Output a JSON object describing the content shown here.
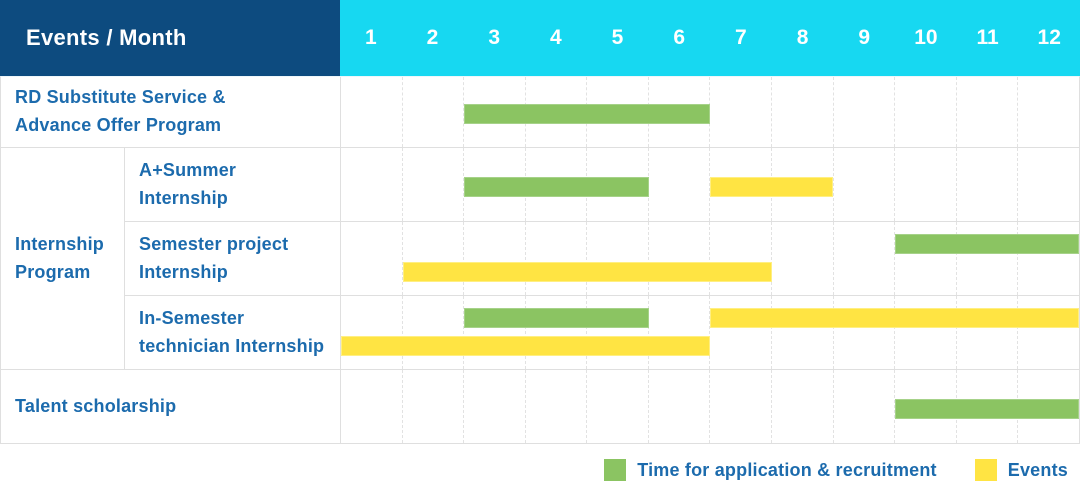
{
  "header": {
    "title": "Events / Month",
    "months": [
      "1",
      "2",
      "3",
      "4",
      "5",
      "6",
      "7",
      "8",
      "9",
      "10",
      "11",
      "12"
    ]
  },
  "colors": {
    "navy_header": "#0d4b7f",
    "cyan_header": "#17d8f1",
    "green": "#8bc462",
    "yellow": "#ffe443",
    "label_blue": "#1c6bad",
    "grid": "#dfdfdf"
  },
  "legend": {
    "items": [
      {
        "id": "application",
        "label": "Time for application & recruitment",
        "color": "green"
      },
      {
        "id": "events",
        "label": "Events",
        "color": "yellow"
      }
    ]
  },
  "chart_data": {
    "type": "gantt",
    "title": "Events / Month",
    "x_axis": {
      "label": "Month",
      "ticks": [
        1,
        2,
        3,
        4,
        5,
        6,
        7,
        8,
        9,
        10,
        11,
        12
      ],
      "range": [
        1,
        12
      ]
    },
    "group_label": [
      "Internship",
      "Program"
    ],
    "series_legend": [
      {
        "name": "Time for application & recruitment",
        "color": "#8bc462"
      },
      {
        "name": "Events",
        "color": "#ffe443"
      }
    ],
    "rows": [
      {
        "label": [
          "RD Substitute Service &",
          "Advance Offer Program"
        ],
        "group": null,
        "bars": [
          {
            "series": "Time for application & recruitment",
            "color": "green",
            "start_month": 3,
            "end_month": 6,
            "lane": "single"
          }
        ]
      },
      {
        "label": [
          "A+Summer",
          "Internship"
        ],
        "group": "Internship Program",
        "bars": [
          {
            "series": "Time for application & recruitment",
            "color": "green",
            "start_month": 3,
            "end_month": 5,
            "lane": "single"
          },
          {
            "series": "Events",
            "color": "yellow",
            "start_month": 7,
            "end_month": 8,
            "lane": "single"
          }
        ]
      },
      {
        "label": [
          "Semester project",
          "Internship"
        ],
        "group": "Internship Program",
        "bars": [
          {
            "series": "Time for application & recruitment",
            "color": "green",
            "start_month": 10,
            "end_month": 12,
            "lane": "top"
          },
          {
            "series": "Events",
            "color": "yellow",
            "start_month": 2,
            "end_month": 7,
            "lane": "bottom"
          }
        ]
      },
      {
        "label": [
          "In-Semester",
          "technician Internship"
        ],
        "group": "Internship Program",
        "bars": [
          {
            "series": "Time for application & recruitment",
            "color": "green",
            "start_month": 3,
            "end_month": 5,
            "lane": "top"
          },
          {
            "series": "Events",
            "color": "yellow",
            "start_month": 7,
            "end_month": 12,
            "lane": "top"
          },
          {
            "series": "Events",
            "color": "yellow",
            "start_month": 1,
            "end_month": 6,
            "lane": "bottom"
          }
        ]
      },
      {
        "label": "Talent scholarship",
        "group": null,
        "bars": [
          {
            "series": "Time for application & recruitment",
            "color": "green",
            "start_month": 10,
            "end_month": 12,
            "lane": "single"
          }
        ]
      }
    ]
  }
}
